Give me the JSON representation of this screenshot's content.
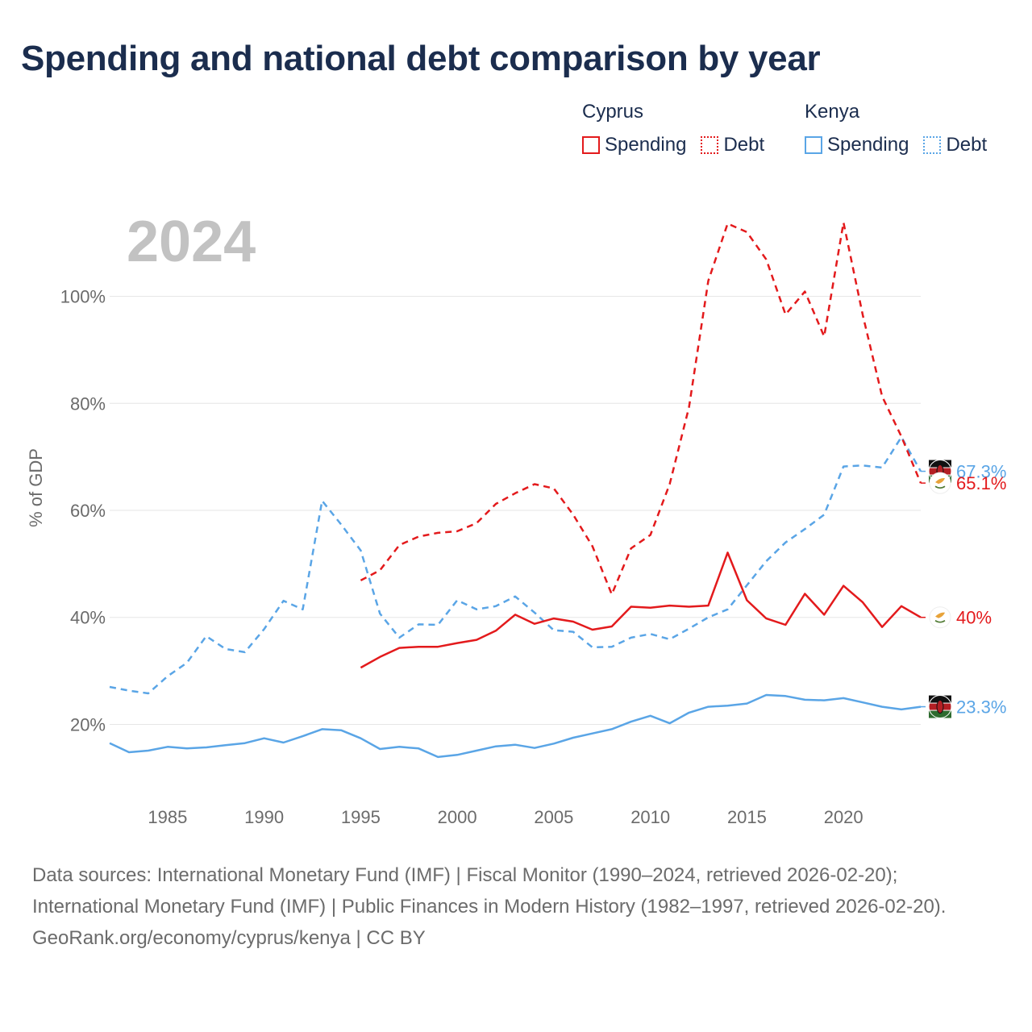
{
  "title": "Spending and national debt comparison by year",
  "legend": [
    {
      "country": "Cyprus",
      "color": "#e31a1c",
      "items": [
        {
          "label": "Spending",
          "style": "solid"
        },
        {
          "label": "Debt",
          "style": "dotted"
        }
      ]
    },
    {
      "country": "Kenya",
      "color": "#5aa5e6",
      "items": [
        {
          "label": "Spending",
          "style": "solid"
        },
        {
          "label": "Debt",
          "style": "dotted"
        }
      ]
    }
  ],
  "chart_data": {
    "type": "line",
    "year_label": "2024",
    "ylabel": "% of GDP",
    "xlim": [
      1982,
      2024
    ],
    "ylim": [
      5,
      115
    ],
    "x_ticks": [
      1985,
      1990,
      1995,
      2000,
      2005,
      2010,
      2015,
      2020
    ],
    "y_ticks": [
      {
        "value": 20,
        "label": "20%"
      },
      {
        "value": 40,
        "label": "40%"
      },
      {
        "value": 60,
        "label": "60%"
      },
      {
        "value": 80,
        "label": "80%"
      },
      {
        "value": 100,
        "label": "100%"
      }
    ],
    "series": [
      {
        "id": "kenya-debt",
        "name": "Kenya Debt",
        "country": "Kenya",
        "color": "#5aa5e6",
        "dash": true,
        "start": 1982,
        "values": [
          27.0,
          26.3,
          25.8,
          29.0,
          31.5,
          36.5,
          34.1,
          33.5,
          37.8,
          43.1,
          41.5,
          61.8,
          57.3,
          52.5,
          40.7,
          36.2,
          38.7,
          38.6,
          43.2,
          41.5,
          42.1,
          43.9,
          40.9,
          37.6,
          37.3,
          34.4,
          34.5,
          36.2,
          36.9,
          35.9,
          37.9,
          40.0,
          41.5,
          46.0,
          50.5,
          54.0,
          56.5,
          59.2,
          68.2,
          68.4,
          68.0,
          73.7,
          67.3
        ],
        "end_label": "67.3%",
        "flag": "kenya"
      },
      {
        "id": "kenya-spending",
        "name": "Kenya Spending",
        "country": "Kenya",
        "color": "#5aa5e6",
        "dash": false,
        "start": 1982,
        "values": [
          16.5,
          14.8,
          15.1,
          15.8,
          15.5,
          15.7,
          16.1,
          16.5,
          17.4,
          16.6,
          17.8,
          19.1,
          18.9,
          17.4,
          15.4,
          15.8,
          15.5,
          13.9,
          14.3,
          15.1,
          15.9,
          16.2,
          15.6,
          16.4,
          17.5,
          18.3,
          19.1,
          20.5,
          21.6,
          20.2,
          22.2,
          23.3,
          23.5,
          23.9,
          25.5,
          25.3,
          24.6,
          24.5,
          24.9,
          24.1,
          23.3,
          22.8,
          23.3
        ],
        "end_label": "23.3%",
        "flag": "kenya"
      },
      {
        "id": "cyprus-debt",
        "name": "Cyprus Debt",
        "country": "Cyprus",
        "color": "#e31a1c",
        "dash": true,
        "start": 1995,
        "values": [
          46.9,
          48.8,
          53.5,
          55.1,
          55.8,
          56.1,
          57.6,
          61.2,
          63.2,
          64.9,
          64.1,
          59.2,
          53.3,
          44.3,
          52.9,
          55.4,
          64.9,
          79.3,
          102.9,
          113.6,
          112.0,
          106.9,
          96.6,
          100.9,
          92.5,
          113.8,
          96.5,
          81.3,
          73.8,
          65.1
        ],
        "end_label": "65.1%",
        "flag": "cyprus"
      },
      {
        "id": "cyprus-spending",
        "name": "Cyprus Spending",
        "country": "Cyprus",
        "color": "#e31a1c",
        "dash": false,
        "start": 1995,
        "values": [
          30.6,
          32.6,
          34.3,
          34.5,
          34.5,
          35.2,
          35.8,
          37.5,
          40.5,
          38.8,
          39.8,
          39.2,
          37.7,
          38.3,
          42.0,
          41.8,
          42.2,
          42.0,
          42.2,
          52.1,
          43.2,
          39.8,
          38.6,
          44.4,
          40.5,
          45.9,
          42.8,
          38.2,
          42.1,
          40.0
        ],
        "end_label": "40%",
        "flag": "cyprus"
      }
    ]
  },
  "footer": {
    "sources": "Data sources: International Monetary Fund (IMF) | Fiscal Monitor (1990–2024, retrieved 2026-02-20); International Monetary Fund (IMF) | Public Finances in Modern History (1982–1997, retrieved 2026-02-20).",
    "credit": "GeoRank.org/economy/cyprus/kenya | CC BY"
  }
}
